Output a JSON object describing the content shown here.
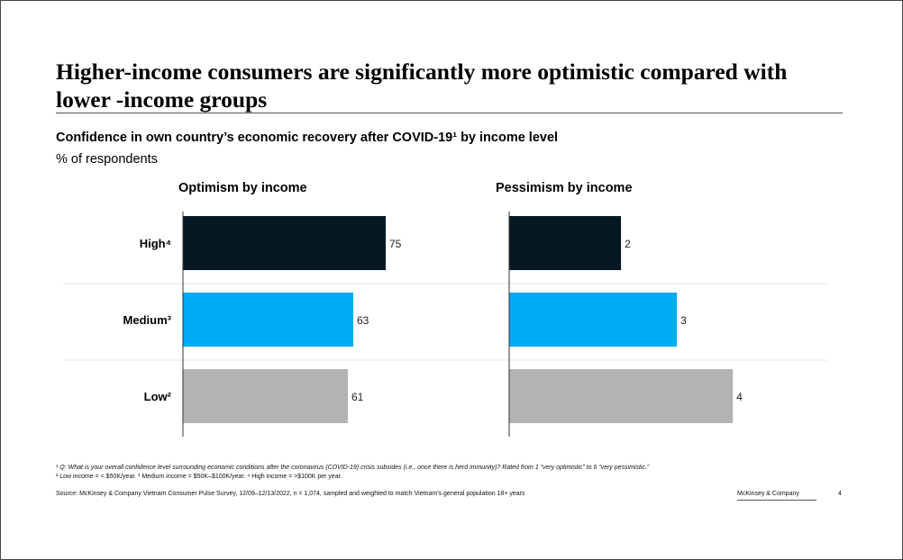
{
  "title": "Higher-income consumers are significantly more optimistic compared with lower -income groups",
  "subtitle": "Confidence in own country’s economic recovery after  COVID-19¹ by income level",
  "unit": "% of respondents",
  "colors": {
    "high": "#061724",
    "medium": "#00a9f4",
    "low": "#b3b3b3",
    "divider": "#e6e6e6"
  },
  "chart_data": [
    {
      "type": "bar",
      "orientation": "horizontal",
      "title": "Optimism by income",
      "categories": [
        "High⁴",
        "Medium³",
        "Low²"
      ],
      "values": [
        75,
        63,
        61
      ],
      "xlim": [
        0,
        100
      ],
      "grid": false
    },
    {
      "type": "bar",
      "orientation": "horizontal",
      "title": "Pessimism by income",
      "categories": [
        "High⁴",
        "Medium³",
        "Low²"
      ],
      "values": [
        2,
        3,
        4
      ],
      "xlim": [
        0,
        5.4
      ],
      "grid": false
    }
  ],
  "footnotes": {
    "note1": "¹ Q: What is your overall confidence level surrounding economic conditions after the coronavirus (COVID-19) crisis subsides (i.e., once there is herd immunity)? Rated from 1 “very optimistic” to 6 “very pessimistic.”",
    "note2": "² Low income = < $50K/year. ³ Medium income = $50K–$100K/year. ⁴ High income = >$100K per year.",
    "source": "Source: McKinsey & Company Vietnam Consumer Pulse Survey, 12/09–12/13/2022, n = 1,074, sampled and weighted to match Vietnam’s general population 18+ years",
    "brand": "McKinsey & Company",
    "page": "4"
  }
}
